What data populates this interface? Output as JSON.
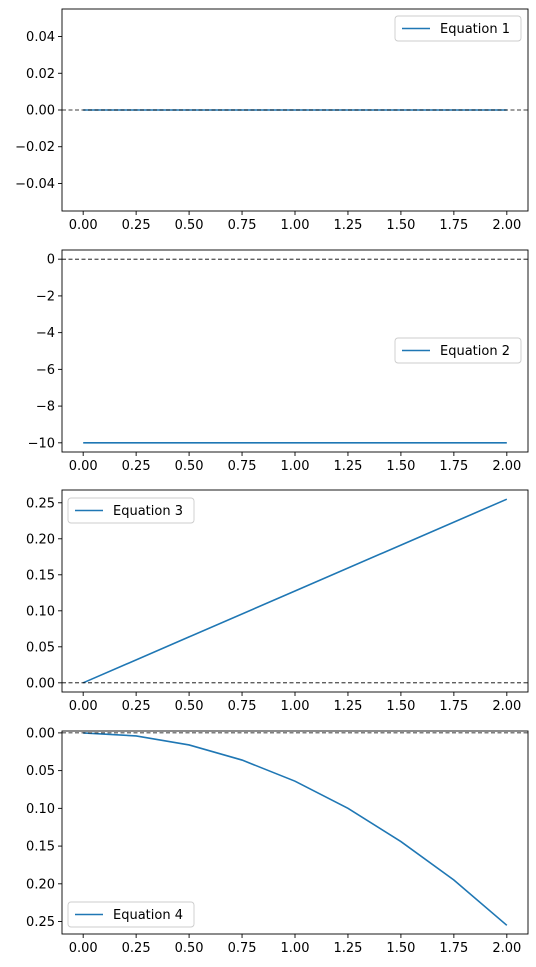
{
  "chart_data": [
    {
      "type": "line",
      "series": [
        {
          "name": "Equation 1",
          "x": [
            0,
            2
          ],
          "y": [
            0,
            0
          ]
        }
      ],
      "reference_line_y": 0,
      "xlim": [
        -0.1,
        2.1
      ],
      "ylim": [
        -0.055,
        0.055
      ],
      "xticks": [
        0,
        0.25,
        0.5,
        0.75,
        1,
        1.25,
        1.5,
        1.75,
        2
      ],
      "xtick_labels": [
        "0.00",
        "0.25",
        "0.50",
        "0.75",
        "1.00",
        "1.25",
        "1.50",
        "1.75",
        "2.00"
      ],
      "yticks": [
        0.04,
        0.02,
        0,
        -0.02,
        -0.04
      ],
      "ytick_labels": [
        "0.04",
        "0.02",
        "0.00",
        "−0.02",
        "−0.04"
      ],
      "legend_loc": "upper right",
      "grid": false
    },
    {
      "type": "line",
      "series": [
        {
          "name": "Equation 2",
          "x": [
            0,
            2
          ],
          "y": [
            -10,
            -10
          ]
        }
      ],
      "reference_line_y": 0,
      "xlim": [
        -0.1,
        2.1
      ],
      "ylim": [
        -10.5,
        0.5
      ],
      "xticks": [
        0,
        0.25,
        0.5,
        0.75,
        1,
        1.25,
        1.5,
        1.75,
        2
      ],
      "xtick_labels": [
        "0.00",
        "0.25",
        "0.50",
        "0.75",
        "1.00",
        "1.25",
        "1.50",
        "1.75",
        "2.00"
      ],
      "yticks": [
        0,
        -2,
        -4,
        -6,
        -8,
        -10
      ],
      "ytick_labels": [
        "0",
        "−2",
        "−4",
        "−6",
        "−8",
        "−10"
      ],
      "legend_loc": "center right",
      "grid": false
    },
    {
      "type": "line",
      "series": [
        {
          "name": "Equation 3",
          "x": [
            0,
            0.5,
            1,
            1.5,
            2
          ],
          "y": [
            0,
            0.06375,
            0.1275,
            0.19125,
            0.255
          ]
        }
      ],
      "reference_line_y": 0,
      "xlim": [
        -0.1,
        2.1
      ],
      "ylim": [
        -0.01275,
        0.26775
      ],
      "xticks": [
        0,
        0.25,
        0.5,
        0.75,
        1,
        1.25,
        1.5,
        1.75,
        2
      ],
      "xtick_labels": [
        "0.00",
        "0.25",
        "0.50",
        "0.75",
        "1.00",
        "1.25",
        "1.50",
        "1.75",
        "2.00"
      ],
      "yticks": [
        0.25,
        0.2,
        0.15,
        0.1,
        0.05,
        0
      ],
      "ytick_labels": [
        "0.25",
        "0.20",
        "0.15",
        "0.10",
        "0.05",
        "0.00"
      ],
      "legend_loc": "upper left",
      "grid": false
    },
    {
      "type": "line",
      "series": [
        {
          "name": "Equation 4",
          "x": [
            0,
            0.25,
            0.5,
            0.75,
            1,
            1.25,
            1.5,
            1.75,
            2
          ],
          "y": [
            0,
            0.004,
            0.016,
            0.036,
            0.064,
            0.1,
            0.144,
            0.195,
            0.255
          ]
        }
      ],
      "reference_line_y": 0,
      "xlim": [
        -0.1,
        2.1
      ],
      "ylim": [
        -0.0025,
        0.2665
      ],
      "y_inverted": true,
      "xticks": [
        0,
        0.25,
        0.5,
        0.75,
        1,
        1.25,
        1.5,
        1.75,
        2
      ],
      "xtick_labels": [
        "0.00",
        "0.25",
        "0.50",
        "0.75",
        "1.00",
        "1.25",
        "1.50",
        "1.75",
        "2.00"
      ],
      "yticks": [
        0,
        0.05,
        0.1,
        0.15,
        0.2,
        0.25
      ],
      "ytick_labels": [
        "0.00",
        "0.05",
        "0.10",
        "0.15",
        "0.20",
        "0.25"
      ],
      "legend_loc": "lower left",
      "grid": false
    }
  ],
  "colors": {
    "line": "#1f77b4",
    "reference_line": "#000000",
    "axes": "#000000",
    "legend_border": "#cccccc",
    "background": "#ffffff"
  }
}
